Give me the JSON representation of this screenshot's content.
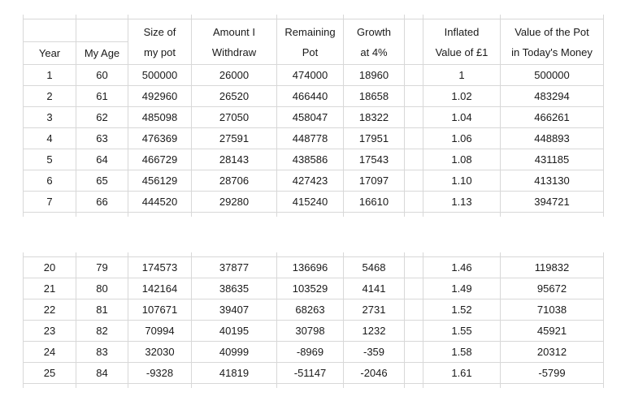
{
  "colors": {
    "border": "#d8d8d8",
    "text": "#1a1a1a",
    "background": "#ffffff"
  },
  "table": {
    "columns": [
      {
        "line1": "",
        "line2": "Year"
      },
      {
        "line1": "",
        "line2": "My Age"
      },
      {
        "line1": "Size of",
        "line2": "my pot"
      },
      {
        "line1": "Amount I",
        "line2": "Withdraw"
      },
      {
        "line1": "Remaining",
        "line2": "Pot"
      },
      {
        "line1": "Growth",
        "line2": "at 4%"
      },
      {
        "line1": "",
        "line2": ""
      },
      {
        "line1": "Inflated",
        "line2": "Value of £1"
      },
      {
        "line1": "Value of the Pot",
        "line2": "in Today's Money"
      }
    ]
  },
  "chart_data": {
    "type": "table",
    "title": "",
    "columns": [
      "Year",
      "My Age",
      "Size of my pot",
      "Amount I Withdraw",
      "Remaining Pot",
      "Growth at 4%",
      "Inflated Value of £1",
      "Value of the Pot in Today's Money"
    ],
    "rows_top": [
      [
        "1",
        "60",
        "500000",
        "26000",
        "474000",
        "18960",
        "1",
        "500000"
      ],
      [
        "2",
        "61",
        "492960",
        "26520",
        "466440",
        "18658",
        "1.02",
        "483294"
      ],
      [
        "3",
        "62",
        "485098",
        "27050",
        "458047",
        "18322",
        "1.04",
        "466261"
      ],
      [
        "4",
        "63",
        "476369",
        "27591",
        "448778",
        "17951",
        "1.06",
        "448893"
      ],
      [
        "5",
        "64",
        "466729",
        "28143",
        "438586",
        "17543",
        "1.08",
        "431185"
      ],
      [
        "6",
        "65",
        "456129",
        "28706",
        "427423",
        "17097",
        "1.10",
        "413130"
      ],
      [
        "7",
        "66",
        "444520",
        "29280",
        "415240",
        "16610",
        "1.13",
        "394721"
      ]
    ],
    "rows_bottom": [
      [
        "20",
        "79",
        "174573",
        "37877",
        "136696",
        "5468",
        "1.46",
        "119832"
      ],
      [
        "21",
        "80",
        "142164",
        "38635",
        "103529",
        "4141",
        "1.49",
        "95672"
      ],
      [
        "22",
        "81",
        "107671",
        "39407",
        "68263",
        "2731",
        "1.52",
        "71038"
      ],
      [
        "23",
        "82",
        "70994",
        "40195",
        "30798",
        "1232",
        "1.55",
        "45921"
      ],
      [
        "24",
        "83",
        "32030",
        "40999",
        "-8969",
        "-359",
        "1.58",
        "20312"
      ],
      [
        "25",
        "84",
        "-9328",
        "41819",
        "-51147",
        "-2046",
        "1.61",
        "-5799"
      ]
    ]
  }
}
